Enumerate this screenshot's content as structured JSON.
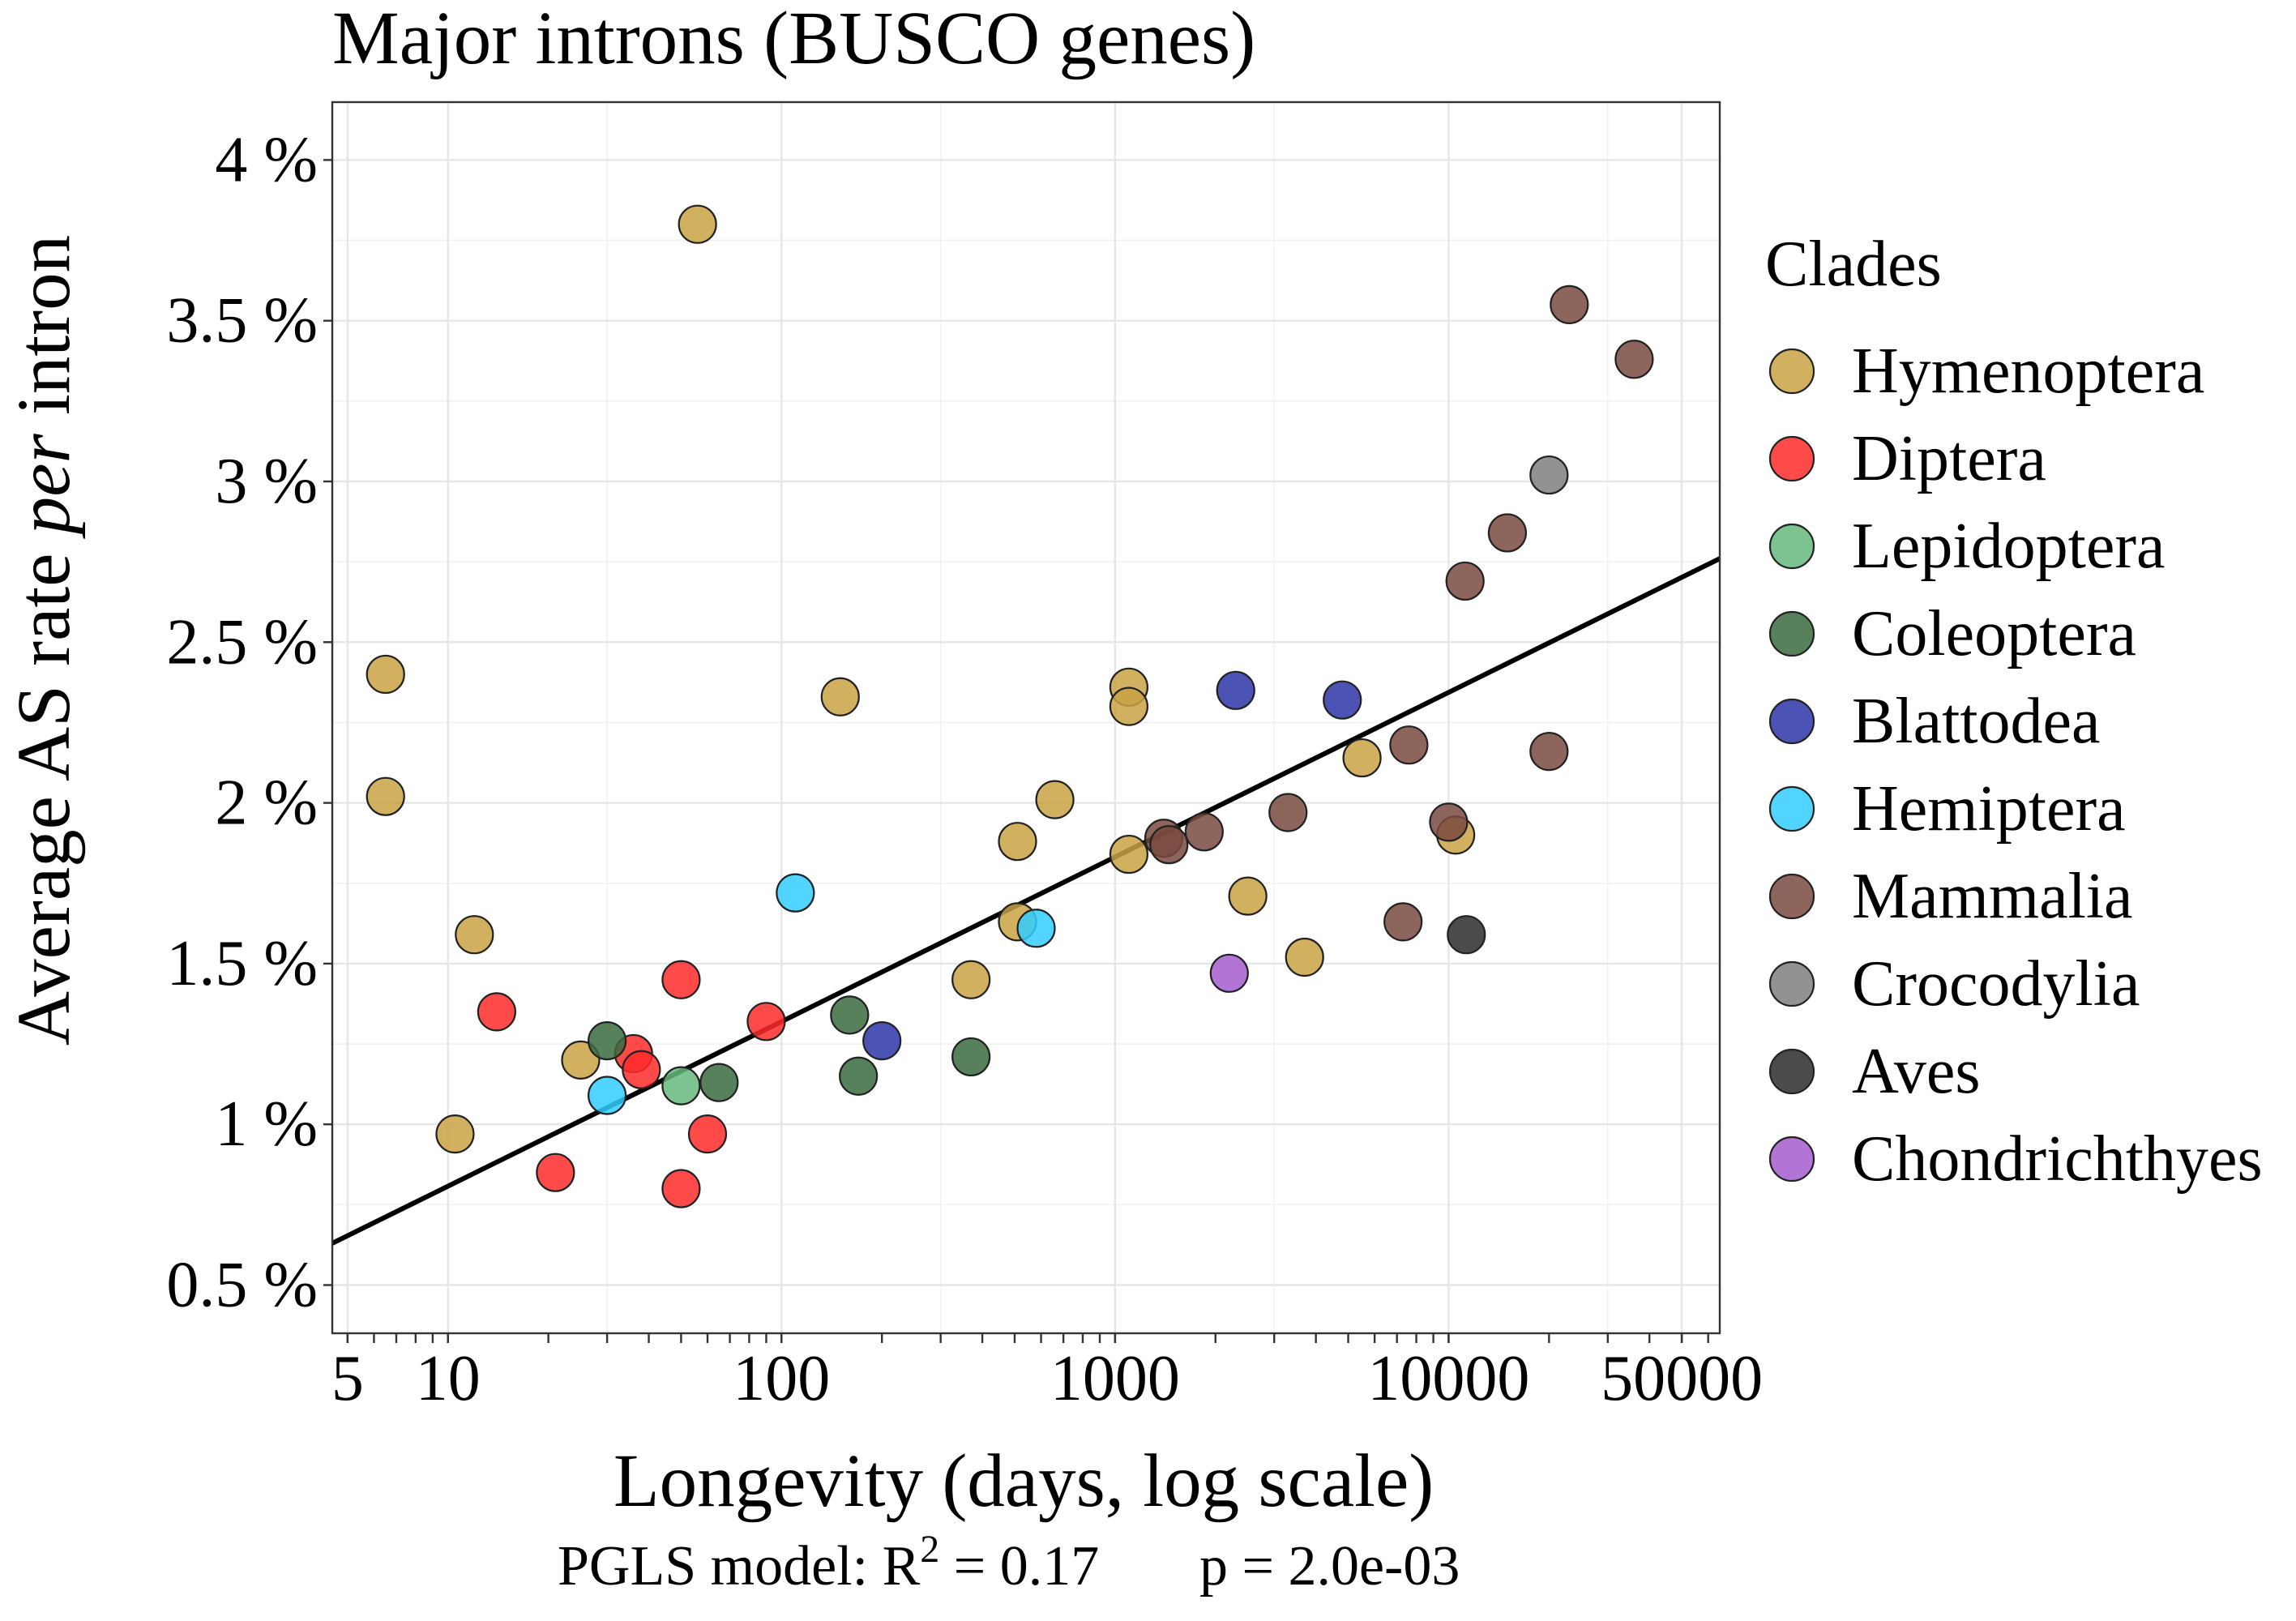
{
  "chart_data": {
    "type": "scatter",
    "title": "Major introns (BUSCO genes)",
    "xlabel": "Longevity (days, log scale)",
    "ylabel_prefix": "Average AS rate ",
    "ylabel_italic": "per",
    "ylabel_suffix": " intron",
    "x_scale": "log",
    "xlim": [
      4.5,
      65000
    ],
    "ylim": [
      0.35,
      4.18
    ],
    "x_ticks": [
      5,
      10,
      100,
      1000,
      10000,
      50000
    ],
    "x_tick_labels": [
      "5",
      "10",
      "100",
      "1000",
      "10000",
      "50000"
    ],
    "y_ticks": [
      0.5,
      1,
      1.5,
      2,
      2.5,
      3,
      3.5,
      4
    ],
    "y_tick_labels": [
      "0.5 %",
      "1 %",
      "1.5 %",
      "2 %",
      "2.5 %",
      "3 %",
      "3.5 %",
      "4 %"
    ],
    "grid": true,
    "legend": {
      "title": "Clades",
      "position": "right"
    },
    "series": [
      {
        "name": "Hymenoptera",
        "color": "#C9A244",
        "points": [
          [
            6.5,
            2.4
          ],
          [
            6.5,
            2.02
          ],
          [
            10.5,
            0.97
          ],
          [
            12,
            1.59
          ],
          [
            25,
            1.2
          ],
          [
            56,
            3.8
          ],
          [
            150,
            2.33
          ],
          [
            370,
            1.45
          ],
          [
            510,
            1.88
          ],
          [
            510,
            1.63
          ],
          [
            660,
            2.01
          ],
          [
            1100,
            2.36
          ],
          [
            1100,
            2.3
          ],
          [
            1100,
            1.84
          ],
          [
            2500,
            1.71
          ],
          [
            3700,
            1.52
          ],
          [
            5500,
            2.14
          ],
          [
            10500,
            1.9
          ]
        ]
      },
      {
        "name": "Diptera",
        "color": "#FF2A2A",
        "points": [
          [
            14,
            1.35
          ],
          [
            21,
            0.85
          ],
          [
            36,
            1.22
          ],
          [
            38,
            1.17
          ],
          [
            50,
            1.45
          ],
          [
            50,
            0.8
          ],
          [
            60,
            0.97
          ],
          [
            90,
            1.32
          ]
        ]
      },
      {
        "name": "Lepidoptera",
        "color": "#66B97D",
        "points": [
          [
            50,
            1.12
          ]
        ]
      },
      {
        "name": "Coleoptera",
        "color": "#3A6B3E",
        "points": [
          [
            30,
            1.26
          ],
          [
            65,
            1.13
          ],
          [
            160,
            1.34
          ],
          [
            170,
            1.15
          ],
          [
            370,
            1.21
          ]
        ]
      },
      {
        "name": "Blattodea",
        "color": "#2E34A8",
        "points": [
          [
            200,
            1.26
          ],
          [
            2300,
            2.35
          ],
          [
            4800,
            2.32
          ]
        ]
      },
      {
        "name": "Hemiptera",
        "color": "#33CCFF",
        "points": [
          [
            30,
            1.09
          ],
          [
            110,
            1.72
          ],
          [
            580,
            1.61
          ]
        ]
      },
      {
        "name": "Mammalia",
        "color": "#7A4A3F",
        "points": [
          [
            1400,
            1.89
          ],
          [
            1450,
            1.87
          ],
          [
            1850,
            1.91
          ],
          [
            3300,
            1.97
          ],
          [
            7300,
            1.63
          ],
          [
            7600,
            2.18
          ],
          [
            10000,
            1.94
          ],
          [
            11200,
            2.69
          ],
          [
            15000,
            2.84
          ],
          [
            20000,
            2.16
          ],
          [
            23000,
            3.55
          ],
          [
            36000,
            3.38
          ]
        ]
      },
      {
        "name": "Crocodylia",
        "color": "#7F7F7F",
        "points": [
          [
            20000,
            3.02
          ]
        ]
      },
      {
        "name": "Aves",
        "color": "#2B2B2B",
        "points": [
          [
            11300,
            1.59
          ]
        ]
      },
      {
        "name": "Chondrichthyes",
        "color": "#A45CCE",
        "points": [
          [
            2200,
            1.47
          ]
        ]
      }
    ],
    "fit_line": {
      "x": [
        4.5,
        65000
      ],
      "y": [
        0.63,
        2.76
      ],
      "color": "#000000"
    },
    "annotation": {
      "prefix": "PGLS model: R",
      "superscript": "2",
      "r2_value": " = 0.17",
      "p_value": "p = 2.0e-03"
    }
  }
}
